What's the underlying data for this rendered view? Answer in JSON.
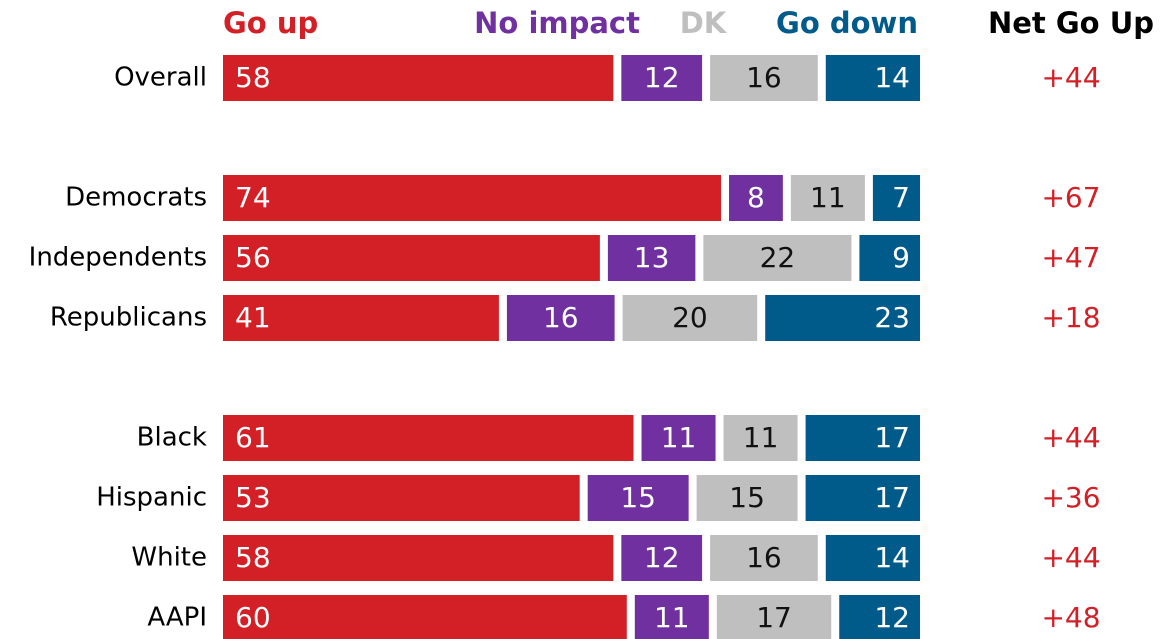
{
  "chart_data": {
    "type": "stacked-bar",
    "categories": [
      "Overall",
      "Democrats",
      "Independents",
      "Republicans",
      "Black",
      "Hispanic",
      "White",
      "AAPI"
    ],
    "series": [
      {
        "name": "Go up",
        "color": "#d32027",
        "values": [
          58,
          74,
          56,
          41,
          61,
          53,
          58,
          60
        ]
      },
      {
        "name": "No impact",
        "color": "#7030a0",
        "values": [
          12,
          8,
          13,
          16,
          11,
          15,
          12,
          11
        ]
      },
      {
        "name": "DK",
        "color": "#bfbfbf",
        "values": [
          16,
          11,
          22,
          20,
          11,
          15,
          16,
          17
        ]
      },
      {
        "name": "Go down",
        "color": "#005b8a",
        "values": [
          14,
          7,
          9,
          23,
          17,
          17,
          14,
          12
        ]
      }
    ],
    "net": {
      "name": "Net Go Up",
      "color": "#d32027",
      "values": [
        44,
        67,
        47,
        18,
        44,
        36,
        44,
        48
      ],
      "value_labels": [
        "+44",
        "+67",
        "+47",
        "+18",
        "+44",
        "+36",
        "+44",
        "+48"
      ]
    }
  }
}
